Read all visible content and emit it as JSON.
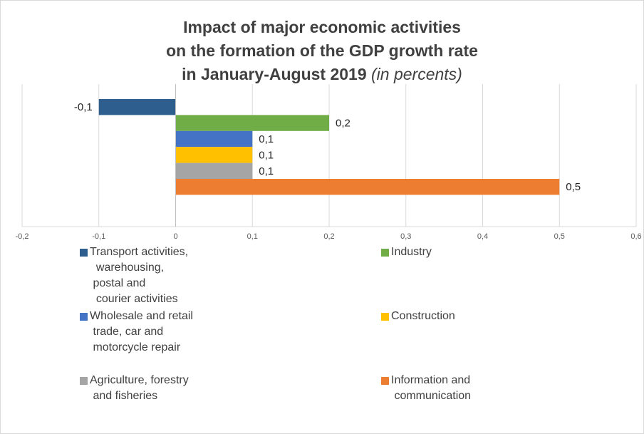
{
  "chart_data": {
    "type": "bar",
    "orientation": "horizontal",
    "title_lines": [
      "Impact of major economic activities",
      "on the formation of the GDP growth rate",
      "in January-August 2019"
    ],
    "title_suffix": " (in percents)",
    "categories": [
      "Transport activities,\n  warehousing,\n postal and\n  courier activities",
      "Industry",
      "Wholesale and retail\n trade, car and\n motorcycle repair",
      "Construction",
      "Agriculture, forestry\n and fisheries",
      "Information and\n communication"
    ],
    "values": [
      -0.1,
      0.2,
      0.1,
      0.1,
      0.1,
      0.5
    ],
    "value_labels": [
      "-0,1",
      "0,2",
      "0,1",
      "0,1",
      "0,1",
      "0,5"
    ],
    "colors": [
      "#2E5E8E",
      "#70AD47",
      "#4472C4",
      "#FFC000",
      "#A5A5A5",
      "#ED7D31"
    ],
    "xlim": [
      -0.2,
      0.6
    ],
    "x_ticks": [
      -0.2,
      -0.1,
      0,
      0.1,
      0.2,
      0.3,
      0.4,
      0.5,
      0.6
    ],
    "x_tick_labels": [
      "-0,2",
      "-0,1",
      "0",
      "0,1",
      "0,2",
      "0,3",
      "0,4",
      "0,5",
      "0,6"
    ],
    "grid": "vertical",
    "legend_position": "bottom"
  }
}
